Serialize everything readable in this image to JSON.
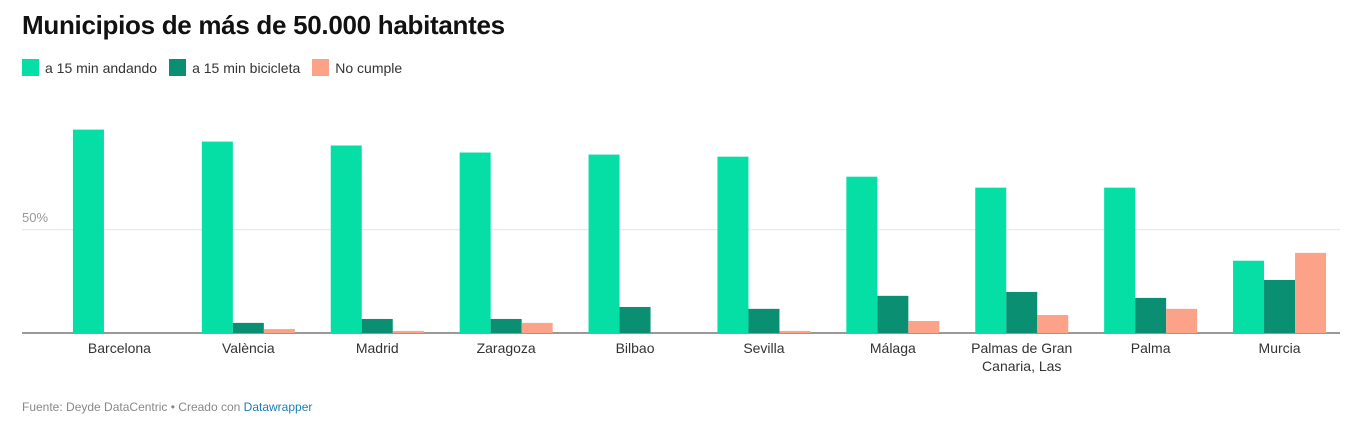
{
  "chart_data": {
    "type": "bar",
    "title": "Municipios de más de 50.000 habitantes",
    "categories": [
      "Barcelona",
      "València",
      "Madrid",
      "Zaragoza",
      "Bilbao",
      "Sevilla",
      "Málaga",
      "Palmas de Gran Canaria, Las",
      "Palma",
      "Murcia"
    ],
    "series": [
      {
        "name": "a 15 min andando",
        "color": "#05dea4",
        "values": [
          98.5,
          92.7,
          90.8,
          87.4,
          86.4,
          85.4,
          75.7,
          70.4,
          70.4,
          35
        ]
      },
      {
        "name": "a 15 min bicicleta",
        "color": "#0b8f72",
        "values": [
          0,
          4.9,
          6.8,
          6.8,
          12.6,
          11.7,
          18,
          19.9,
          17,
          25.7
        ]
      },
      {
        "name": "No cumple",
        "color": "#fca288",
        "values": [
          0,
          1.9,
          1,
          4.9,
          0,
          1,
          5.8,
          8.7,
          11.7,
          38.8
        ]
      }
    ],
    "ylim": [
      0,
      108
    ],
    "yticks": [
      {
        "value": 50,
        "label": "50%"
      }
    ],
    "grid": true,
    "source": "Fuente: Deyde DataCentric • Creado con",
    "credit_link": "Datawrapper"
  }
}
